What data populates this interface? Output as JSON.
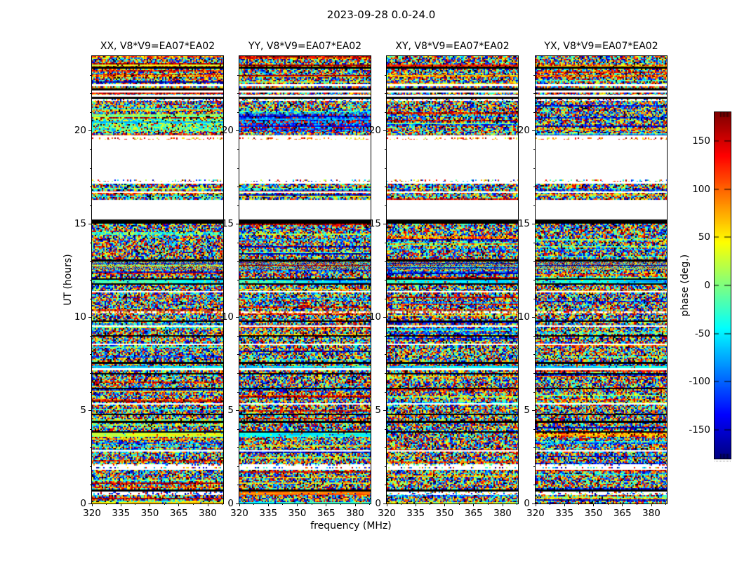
{
  "title": "2023-09-28 0.0-24.0",
  "axes": {
    "ylabel": "UT (hours)",
    "xlabel": "frequency (MHz)",
    "y_range": [
      0,
      24
    ],
    "x_range": [
      320,
      388
    ],
    "y_major": [
      0,
      5,
      10,
      15,
      20
    ],
    "y_minor_step": 1,
    "x_major": [
      320,
      335,
      350,
      365,
      380
    ],
    "x_minor_offset": 7.5
  },
  "chart_data": {
    "type": "heatmap",
    "title": "2023-09-28 0.0-24.0",
    "xlabel": "frequency (MHz)",
    "ylabel": "UT (hours)",
    "x_range_mhz": [
      320,
      388
    ],
    "x_ticks_mhz": [
      320,
      335,
      350,
      365,
      380
    ],
    "y_range_ut_hours": [
      0,
      24
    ],
    "y_ticks_ut_hours": [
      0,
      5,
      10,
      15,
      20
    ],
    "colormap": "jet",
    "description": "Four correlation-product waterfall plots (frequency vs UT) of interferometric visibility phase for baseline V8*V9 = EA07*EA02. Phase is essentially random noise over most of the time range, organized in horizontal time-rows, interrupted by white unobserved gaps, black flagged rows, and a few coherent smooth-phase bands.",
    "subplots": [
      {
        "key": "XX",
        "title": "XX, V8*V9=EA07*EA02",
        "seed": 101
      },
      {
        "key": "YY",
        "title": "YY, V8*V9=EA07*EA02",
        "seed": 202
      },
      {
        "key": "XY",
        "title": "XY, V8*V9=EA07*EA02",
        "seed": 303
      },
      {
        "key": "YX",
        "title": "YX, V8*V9=EA07*EA02",
        "seed": 404
      }
    ],
    "colorbar": {
      "label": "phase (deg.)",
      "range_deg": [
        -180,
        180
      ],
      "tick_values": [
        150,
        100,
        50,
        0,
        -50,
        -100,
        -150
      ],
      "tick_labels": [
        "150",
        "100",
        "50",
        "0",
        "-50",
        "-100",
        "-150"
      ]
    },
    "time_bands": [
      {
        "ut": [
          23.55,
          24.0
        ],
        "kind": "noise"
      },
      {
        "ut": [
          23.42,
          23.55
        ],
        "kind": "noise",
        "palette": "warm"
      },
      {
        "ut": [
          23.34,
          23.42
        ],
        "kind": "black"
      },
      {
        "ut": [
          23.0,
          23.34
        ],
        "kind": "noise"
      },
      {
        "ut": [
          22.87,
          23.0
        ],
        "kind": "noise",
        "palette": "warm"
      },
      {
        "ut": [
          22.5,
          22.87
        ],
        "kind": "noise"
      },
      {
        "ut": [
          22.38,
          22.5
        ],
        "kind": "white"
      },
      {
        "ut": [
          22.27,
          22.38
        ],
        "kind": "noise"
      },
      {
        "ut": [
          22.16,
          22.27
        ],
        "kind": "black"
      },
      {
        "ut": [
          22.04,
          22.16
        ],
        "kind": "white"
      },
      {
        "ut": [
          21.93,
          22.04
        ],
        "kind": "noise"
      },
      {
        "ut": [
          21.82,
          21.93
        ],
        "kind": "white"
      },
      {
        "ut": [
          21.7,
          21.82
        ],
        "kind": "black"
      },
      {
        "ut": [
          21.59,
          21.7
        ],
        "kind": "sparse"
      },
      {
        "ut": [
          20.88,
          21.59
        ],
        "kind": "noise"
      },
      {
        "ut": [
          19.94,
          20.88
        ],
        "kind": "special",
        "id": "band_20h"
      },
      {
        "ut": [
          19.75,
          19.94
        ],
        "kind": "noise"
      },
      {
        "ut": [
          19.64,
          19.75
        ],
        "kind": "white"
      },
      {
        "ut": [
          19.52,
          19.64
        ],
        "kind": "sparse",
        "palette": "warm"
      },
      {
        "ut": [
          17.38,
          19.52
        ],
        "kind": "white"
      },
      {
        "ut": [
          17.27,
          17.38
        ],
        "kind": "sparse"
      },
      {
        "ut": [
          17.15,
          17.27
        ],
        "kind": "white"
      },
      {
        "ut": [
          16.74,
          17.15
        ],
        "kind": "noise"
      },
      {
        "ut": [
          16.66,
          16.74
        ],
        "kind": "white"
      },
      {
        "ut": [
          16.29,
          16.66
        ],
        "kind": "noise"
      },
      {
        "ut": [
          15.23,
          16.29
        ],
        "kind": "white"
      },
      {
        "ut": [
          15.0,
          15.23
        ],
        "kind": "black"
      },
      {
        "ut": [
          13.09,
          15.0
        ],
        "kind": "noise"
      },
      {
        "ut": [
          12.98,
          13.09
        ],
        "kind": "black"
      },
      {
        "ut": [
          12.53,
          12.98
        ],
        "kind": "noise",
        "fine": true
      },
      {
        "ut": [
          12.08,
          12.53
        ],
        "kind": "noise"
      },
      {
        "ut": [
          12.0,
          12.08
        ],
        "kind": "black"
      },
      {
        "ut": [
          11.81,
          12.0
        ],
        "kind": "special",
        "id": "band_12h"
      },
      {
        "ut": [
          11.74,
          11.81
        ],
        "kind": "black"
      },
      {
        "ut": [
          11.4,
          11.74
        ],
        "kind": "noise"
      },
      {
        "ut": [
          11.33,
          11.4
        ],
        "kind": "white"
      },
      {
        "ut": [
          10.31,
          11.33
        ],
        "kind": "noise"
      },
      {
        "ut": [
          10.2,
          10.31
        ],
        "kind": "sparse",
        "palette": "warm",
        "density": 0.5
      },
      {
        "ut": [
          9.82,
          10.2
        ],
        "kind": "noise"
      },
      {
        "ut": [
          9.74,
          9.82
        ],
        "kind": "black"
      },
      {
        "ut": [
          9.56,
          9.74
        ],
        "kind": "noise"
      },
      {
        "ut": [
          9.48,
          9.56
        ],
        "kind": "white"
      },
      {
        "ut": [
          9.03,
          9.48
        ],
        "kind": "noise"
      },
      {
        "ut": [
          8.95,
          9.03
        ],
        "kind": "black"
      },
      {
        "ut": [
          8.58,
          8.95
        ],
        "kind": "noise"
      },
      {
        "ut": [
          8.5,
          8.58
        ],
        "kind": "white"
      },
      {
        "ut": [
          7.6,
          8.5
        ],
        "kind": "noise"
      },
      {
        "ut": [
          7.49,
          7.6
        ],
        "kind": "black"
      },
      {
        "ut": [
          7.37,
          7.49
        ],
        "kind": "noise"
      },
      {
        "ut": [
          7.26,
          7.37
        ],
        "kind": "smooth",
        "t": [
          0.3,
          0.4
        ]
      },
      {
        "ut": [
          7.15,
          7.26
        ],
        "kind": "white"
      },
      {
        "ut": [
          7.0,
          7.15
        ],
        "kind": "noise"
      },
      {
        "ut": [
          6.92,
          7.0
        ],
        "kind": "black"
      },
      {
        "ut": [
          6.21,
          6.92
        ],
        "kind": "noise"
      },
      {
        "ut": [
          6.13,
          6.21
        ],
        "kind": "black"
      },
      {
        "ut": [
          5.38,
          6.13
        ],
        "kind": "noise"
      },
      {
        "ut": [
          5.3,
          5.38
        ],
        "kind": "white"
      },
      {
        "ut": [
          4.82,
          5.3
        ],
        "kind": "noise"
      },
      {
        "ut": [
          4.74,
          4.82
        ],
        "kind": "black"
      },
      {
        "ut": [
          4.44,
          4.74
        ],
        "kind": "noise"
      },
      {
        "ut": [
          4.33,
          4.44
        ],
        "kind": "black"
      },
      {
        "ut": [
          3.87,
          4.33
        ],
        "kind": "noise"
      },
      {
        "ut": [
          3.8,
          3.87
        ],
        "kind": "black"
      },
      {
        "ut": [
          3.57,
          3.8
        ],
        "kind": "special",
        "id": "band_4h"
      },
      {
        "ut": [
          2.86,
          3.57
        ],
        "kind": "noise"
      },
      {
        "ut": [
          2.78,
          2.86
        ],
        "kind": "white"
      },
      {
        "ut": [
          2.11,
          2.78
        ],
        "kind": "noise"
      },
      {
        "ut": [
          2.03,
          2.11
        ],
        "kind": "sparse"
      },
      {
        "ut": [
          1.96,
          2.03
        ],
        "kind": "white"
      },
      {
        "ut": [
          1.88,
          1.96
        ],
        "kind": "sparse"
      },
      {
        "ut": [
          1.81,
          1.88
        ],
        "kind": "white"
      },
      {
        "ut": [
          0.75,
          1.81
        ],
        "kind": "noise"
      },
      {
        "ut": [
          0.64,
          0.75
        ],
        "kind": "black"
      },
      {
        "ut": [
          0.45,
          0.64
        ],
        "kind": "special",
        "id": "band_0.5h"
      },
      {
        "ut": [
          0.08,
          0.45
        ],
        "kind": "noise"
      },
      {
        "ut": [
          0.0,
          0.08
        ],
        "kind": "special",
        "id": "band_0h"
      }
    ],
    "special_bands": {
      "band_20h": {
        "XX": {
          "kind": "noise",
          "palette": "mid"
        },
        "YY": {
          "kind": "noise",
          "palette": "cool"
        },
        "XY": {
          "kind": "noise"
        },
        "YX": {
          "kind": "noise"
        }
      },
      "band_12h": {
        "XX": {
          "kind": "smooth",
          "t": [
            0.46,
            0.28
          ],
          "speckle": 0.15
        },
        "YY": {
          "kind": "smooth",
          "t": [
            0.44,
            0.26
          ],
          "speckle": 0.15
        },
        "XY": {
          "kind": "smooth",
          "t": [
            0.45,
            0.3
          ],
          "speckle": 0.15
        },
        "YX": {
          "kind": "smooth",
          "t": [
            0.46,
            0.3
          ],
          "speckle": 0.15
        }
      },
      "band_4h": {
        "XX": {
          "kind": "smooth",
          "t": [
            0.55,
            0.58
          ]
        },
        "YY": {
          "kind": "smooth",
          "t": [
            0.4,
            0.36
          ]
        },
        "XY": {
          "kind": "noise"
        },
        "YX": {
          "kind": "noise",
          "palette": "warm"
        }
      },
      "band_0.5h": {
        "XX": {
          "kind": "sparse",
          "palette": "cool",
          "density": 0.3
        },
        "YY": {
          "kind": "smooth",
          "t": [
            0.75,
            0.8
          ]
        },
        "XY": {
          "kind": "sparse",
          "density": 0.3
        },
        "YX": {
          "kind": "sparse",
          "density": 0.3
        }
      },
      "band_0h": {
        "XX": {
          "kind": "smooth",
          "t": [
            0.65,
            0.72
          ]
        },
        "YY": {
          "kind": "smooth",
          "t": [
            0.42,
            0.38
          ]
        },
        "XY": {
          "kind": "noise"
        },
        "YX": {
          "kind": "noise"
        }
      }
    }
  }
}
